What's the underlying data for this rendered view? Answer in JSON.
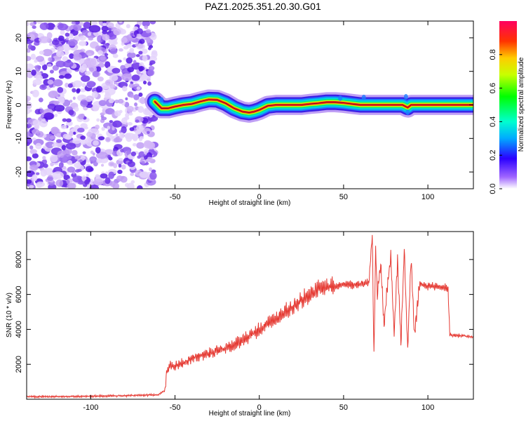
{
  "title": "PAZ1.2025.351.20.30.G01",
  "chart_data": [
    {
      "type": "heatmap",
      "name": "spectrogram",
      "xlabel": "Height of straight line (km)",
      "ylabel": "Frequency (Hz)",
      "xlim": [
        -138,
        127
      ],
      "ylim": [
        -25,
        25
      ],
      "xticks": [
        -100,
        -50,
        0,
        50,
        100
      ],
      "yticks": [
        -20,
        -10,
        0,
        10,
        20
      ],
      "noise_region_x": [
        -138,
        -62
      ],
      "ridge": {
        "x": [
          -62,
          -58,
          -54,
          -50,
          -45,
          -40,
          -35,
          -30,
          -25,
          -20,
          -15,
          -10,
          -6,
          -3,
          0,
          5,
          10,
          15,
          20,
          25,
          30,
          35,
          40,
          45,
          50,
          55,
          60,
          65,
          70,
          75,
          80,
          85,
          88,
          90,
          95,
          100,
          105,
          110,
          115,
          120,
          127
        ],
        "y": [
          1,
          -1,
          -1,
          -0.5,
          0,
          0.3,
          1,
          1.6,
          1.5,
          0.5,
          -1,
          -2,
          -2.3,
          -2,
          -1.5,
          -0.3,
          0,
          0,
          0,
          0,
          0.3,
          0.5,
          0.8,
          0.8,
          0.6,
          0.3,
          0,
          0,
          0,
          0,
          0,
          0,
          -0.8,
          0,
          0,
          0,
          0,
          0,
          0,
          0,
          0
        ]
      },
      "colorbar": {
        "label": "Normalized spectral amplitude",
        "ticks": [
          0.0,
          0.2,
          0.4,
          0.6,
          0.8
        ],
        "tick_labels": [
          "0.0",
          "0.2",
          "0.4",
          "0.6",
          "0.8"
        ],
        "range": [
          0,
          1
        ]
      }
    },
    {
      "type": "line",
      "name": "snr",
      "xlabel": "Height of straight line (km)",
      "ylabel": "SNR (10 * v/v)",
      "xlim": [
        -138,
        127
      ],
      "ylim": [
        0,
        9600
      ],
      "xticks": [
        -100,
        -50,
        0,
        50,
        100
      ],
      "yticks": [
        2000,
        4000,
        6000,
        8000
      ],
      "color": "#e53a33",
      "x": [
        -138,
        -120,
        -100,
        -80,
        -60,
        -56,
        -55,
        -53,
        -50,
        -45,
        -40,
        -35,
        -30,
        -25,
        -20,
        -15,
        -10,
        -5,
        0,
        5,
        10,
        15,
        20,
        25,
        30,
        35,
        40,
        45,
        50,
        55,
        60,
        65,
        67,
        68,
        69,
        70,
        72,
        74,
        76,
        78,
        80,
        82,
        84,
        86,
        88,
        90,
        92,
        95,
        100,
        105,
        110,
        112,
        113,
        115,
        120,
        127
      ],
      "y": [
        150,
        150,
        170,
        200,
        250,
        500,
        1500,
        2000,
        1900,
        2100,
        2300,
        2500,
        2600,
        2800,
        2900,
        3100,
        3400,
        3700,
        4000,
        4300,
        4600,
        5000,
        5300,
        5700,
        6000,
        6300,
        6450,
        6500,
        6550,
        6550,
        6600,
        6700,
        9400,
        2400,
        8800,
        6000,
        7800,
        4200,
        6500,
        8200,
        3700,
        8000,
        3200,
        8500,
        2900,
        8000,
        3600,
        6600,
        6450,
        6450,
        6400,
        6350,
        3700,
        3650,
        3650,
        3550
      ]
    }
  ]
}
